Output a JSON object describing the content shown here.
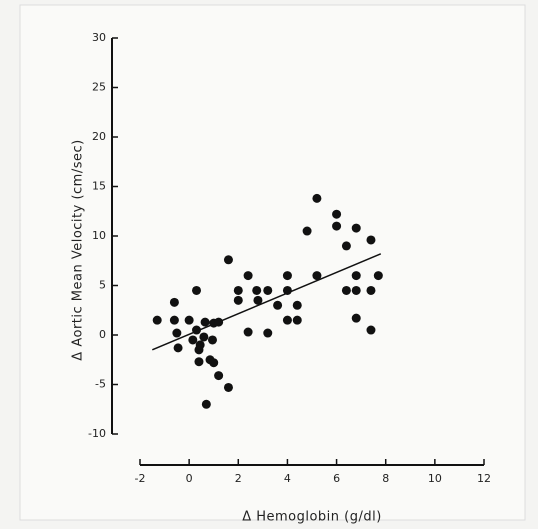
{
  "chart_data": {
    "type": "scatter",
    "x_label": "Δ Hemoglobin (g/dl)",
    "y_label": "Δ Aortic Mean Velocity (cm/sec)",
    "xlim": [
      -2,
      12
    ],
    "xticks": [
      -2,
      0,
      2,
      4,
      6,
      8,
      10,
      12
    ],
    "ylim": [
      -10,
      30
    ],
    "yticks": [
      -10,
      -5,
      0,
      5,
      10,
      15,
      20,
      25,
      30
    ],
    "color": "#111111",
    "x": [
      -1.3,
      -0.6,
      -0.6,
      -0.5,
      -0.45,
      0,
      0.15,
      0.3,
      0.4,
      0.4,
      0.45,
      0.3,
      0.6,
      0.65,
      0.7,
      0.85,
      0.95,
      1.0,
      1.2,
      1.0,
      1.2,
      1.6,
      1.6,
      2.0,
      2.0,
      2.4,
      2.4,
      2.75,
      2.8,
      3.2,
      3.2,
      3.6,
      4.0,
      4.0,
      4.0,
      4.4,
      4.4,
      4.8,
      5.2,
      5.2,
      6.0,
      6.0,
      6.4,
      6.4,
      6.8,
      6.8,
      6.8,
      7.4,
      7.4,
      7.4,
      7.7,
      6.8
    ],
    "values": [
      1.5,
      1.5,
      3.3,
      0.2,
      -1.3,
      1.5,
      -0.5,
      0.5,
      -1.5,
      -2.7,
      -1,
      4.5,
      -0.2,
      1.3,
      -7,
      -2.5,
      -0.5,
      1.2,
      1.3,
      -2.8,
      -4.1,
      -5.3,
      7.6,
      4.5,
      3.5,
      6,
      0.3,
      4.5,
      3.5,
      4.5,
      0.2,
      3,
      6,
      4.5,
      1.5,
      3,
      1.5,
      10.5,
      13.8,
      6,
      12.2,
      11,
      4.5,
      9,
      6,
      4.5,
      1.7,
      9.6,
      4.5,
      0.5,
      6,
      10.8
    ],
    "trend_line": {
      "x": [
        -1.5,
        7.8
      ],
      "y": [
        -1.5,
        8.2
      ]
    }
  }
}
